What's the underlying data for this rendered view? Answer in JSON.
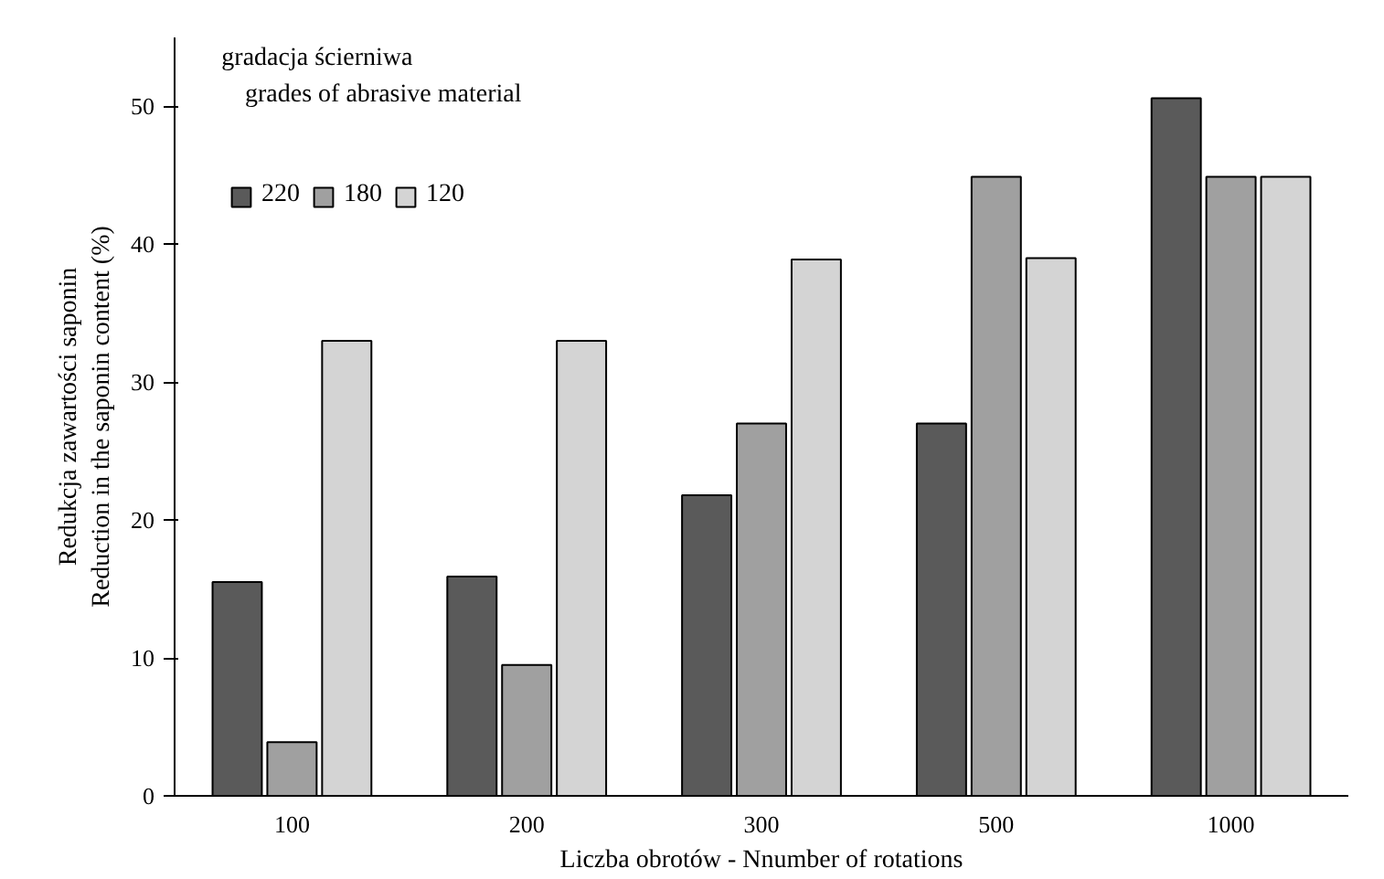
{
  "chart_data": {
    "type": "bar",
    "xlabel": "Liczba obrotów - Nnumber of rotations",
    "ylabel": "Redukcja zawartości saponin\nReduction in the saponin content (%)",
    "legend_title": "gradacja ścierniwa\ngrades of abrasive material",
    "categories": [
      "100",
      "200",
      "300",
      "500",
      "1000"
    ],
    "series": [
      {
        "name": "220",
        "color": "#5a5a5a",
        "values": [
          15.5,
          15.9,
          21.8,
          27.0,
          50.6
        ]
      },
      {
        "name": "180",
        "color": "#a0a0a0",
        "values": [
          3.9,
          9.5,
          27.0,
          44.9,
          44.9
        ]
      },
      {
        "name": "120",
        "color": "#d4d4d4",
        "values": [
          33.0,
          33.0,
          38.9,
          39.0,
          44.9
        ]
      }
    ],
    "ylim": [
      0,
      55
    ],
    "yticks": [
      0,
      10,
      20,
      30,
      40,
      50
    ],
    "grid": false,
    "legend": "top left"
  }
}
